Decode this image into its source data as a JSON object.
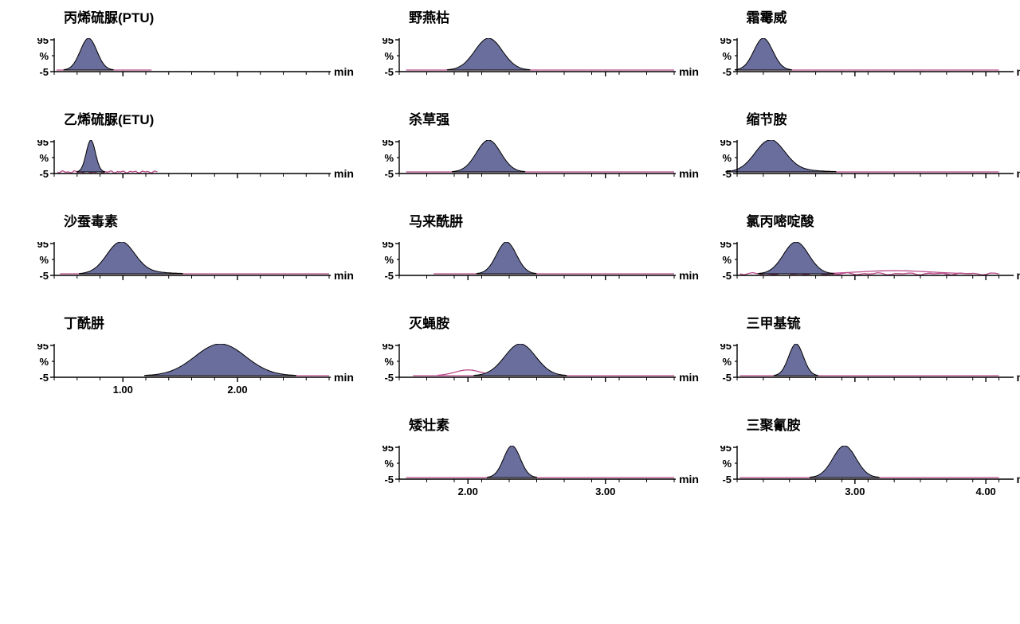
{
  "global": {
    "y_ticks": [
      -5,
      95
    ],
    "y_label": "%",
    "x_label": "min",
    "background_color": "#ffffff",
    "peak_fill": "#6a6e9c",
    "peak_stroke": "#000000",
    "baseline_color": "#b94a8a",
    "axis_color": "#000000",
    "title_fontsize": 17,
    "tick_fontsize": 13,
    "label_fontsize": 14,
    "title_fontweight": "bold",
    "plot_inner_width": 345,
    "plot_inner_height": 42,
    "y_left_axis_x": 36
  },
  "columns": [
    {
      "x_min": 0.4,
      "x_max": 2.8,
      "x_major": [
        1.0,
        2.0
      ],
      "x_minor_step": 0.2,
      "panels": [
        {
          "title": "丙烯硫脲(PTU)",
          "peak_center": 0.7,
          "peak_width": 0.18,
          "peak_height": 100,
          "baseline_start": 0.42,
          "baseline_end": 1.25,
          "show_x_ticks": false
        },
        {
          "title": "乙烯硫脲(ETU)",
          "peak_center": 0.72,
          "peak_width": 0.1,
          "peak_height": 100,
          "baseline_start": 0.43,
          "baseline_end": 1.3,
          "show_x_ticks": false,
          "baseline_noise": true
        },
        {
          "title": "沙蚕毒素",
          "peak_center": 0.98,
          "peak_width": 0.3,
          "peak_height": 100,
          "baseline_start": 0.45,
          "baseline_end": 2.8,
          "show_x_ticks": false,
          "tail_right": true
        },
        {
          "title": "丁酰肼",
          "peak_center": 1.85,
          "peak_width": 0.55,
          "peak_height": 100,
          "baseline_start": 1.2,
          "baseline_end": 2.8,
          "show_x_ticks": true
        }
      ]
    },
    {
      "x_min": 1.5,
      "x_max": 3.5,
      "x_major": [
        2.0,
        3.0
      ],
      "x_minor_step": 0.2,
      "panels": [
        {
          "title": "野燕枯",
          "peak_center": 2.15,
          "peak_width": 0.25,
          "peak_height": 100,
          "baseline_start": 1.55,
          "baseline_end": 3.5,
          "show_x_ticks": false
        },
        {
          "title": "杀草强",
          "peak_center": 2.15,
          "peak_width": 0.22,
          "peak_height": 100,
          "baseline_start": 1.55,
          "baseline_end": 3.5,
          "show_x_ticks": false
        },
        {
          "title": "马来酰肼",
          "peak_center": 2.28,
          "peak_width": 0.18,
          "peak_height": 100,
          "baseline_start": 1.75,
          "baseline_end": 3.5,
          "show_x_ticks": false
        },
        {
          "title": "灭蝇胺",
          "peak_center": 2.38,
          "peak_width": 0.28,
          "peak_height": 100,
          "baseline_start": 1.6,
          "baseline_end": 3.5,
          "show_x_ticks": false,
          "pre_bump_center": 2.0,
          "pre_bump_height": 18,
          "pre_bump_width": 0.22
        },
        {
          "title": "矮壮素",
          "peak_center": 2.32,
          "peak_width": 0.15,
          "peak_height": 100,
          "baseline_start": 1.55,
          "baseline_end": 3.5,
          "show_x_ticks": true
        }
      ]
    },
    {
      "x_min": 2.1,
      "x_max": 4.2,
      "x_major": [
        3.0,
        4.0
      ],
      "x_minor_step": 0.2,
      "panels": [
        {
          "title": "霜霉威",
          "peak_center": 2.3,
          "peak_width": 0.18,
          "peak_height": 100,
          "baseline_start": 2.12,
          "baseline_end": 4.1,
          "show_x_ticks": false
        },
        {
          "title": "缩节胺",
          "peak_center": 2.35,
          "peak_width": 0.28,
          "peak_height": 100,
          "baseline_start": 2.12,
          "baseline_end": 4.1,
          "show_x_ticks": false,
          "tail_right": true
        },
        {
          "title": "氯丙嘧啶酸",
          "peak_center": 2.55,
          "peak_width": 0.24,
          "peak_height": 100,
          "baseline_start": 2.12,
          "baseline_end": 4.1,
          "show_x_ticks": false,
          "baseline_noise": true,
          "post_bump_center": 3.3,
          "post_bump_height": 10,
          "post_bump_width": 0.6
        },
        {
          "title": "三甲基锍",
          "peak_center": 2.55,
          "peak_width": 0.14,
          "peak_height": 100,
          "baseline_start": 2.12,
          "baseline_end": 4.1,
          "show_x_ticks": false
        },
        {
          "title": "三聚氰胺",
          "peak_center": 2.92,
          "peak_width": 0.22,
          "peak_height": 100,
          "baseline_start": 2.12,
          "baseline_end": 4.1,
          "show_x_ticks": true
        }
      ]
    }
  ]
}
